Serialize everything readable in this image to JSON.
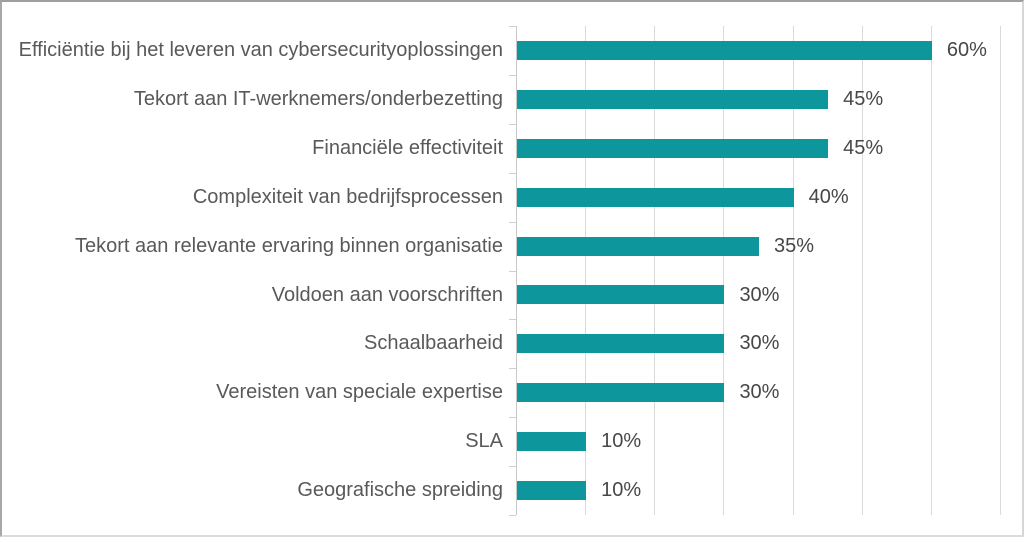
{
  "chart_data": {
    "type": "bar",
    "orientation": "horizontal",
    "title": "",
    "xlabel": "",
    "ylabel": "",
    "xlim": [
      0,
      70
    ],
    "grid": true,
    "gridline_interval": 10,
    "legend_position": "none",
    "categories": [
      "Efficiëntie bij het leveren van cybersecurityoplossingen",
      "Tekort aan IT-werknemers/onderbezetting",
      "Financiële effectiviteit",
      "Complexiteit van  bedrijfsprocessen",
      "Tekort aan relevante ervaring binnen organisatie",
      "Voldoen aan voorschriften",
      "Schaalbaarheid",
      "Vereisten van speciale expertise",
      "SLA",
      "Geografische spreiding"
    ],
    "values": [
      60,
      45,
      45,
      40,
      35,
      30,
      30,
      30,
      10,
      10
    ],
    "value_labels": [
      "60%",
      "45%",
      "45%",
      "40%",
      "35%",
      "30%",
      "30%",
      "30%",
      "10%",
      "10%"
    ],
    "colors": {
      "bar": "#0d969b",
      "category_text": "#595959",
      "value_text": "#474747",
      "gridline": "#d9d9d9",
      "axis": "#c9c9c9",
      "tick": "#cfcfcf",
      "background": "#ffffff"
    }
  }
}
